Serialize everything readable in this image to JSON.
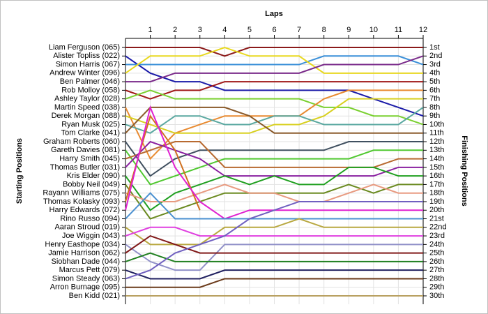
{
  "chart_data": {
    "type": "line",
    "x_label": "Laps",
    "y_label": "Starting Positions",
    "y2_label": "Finishing Positions",
    "categories": [
      null,
      "1",
      "2",
      "3",
      "4",
      "5",
      "6",
      "7",
      "8",
      "9",
      "10",
      "11",
      "12"
    ],
    "ylim": [
      1,
      30
    ],
    "y_inverted": true,
    "grid": true,
    "y2ticks": [
      {
        "value": 1,
        "label": "1st"
      },
      {
        "value": 2,
        "label": "2nd"
      },
      {
        "value": 3,
        "label": "3rd"
      },
      {
        "value": 4,
        "label": "4th"
      },
      {
        "value": 5,
        "label": "5th"
      },
      {
        "value": 6,
        "label": "6th"
      },
      {
        "value": 7,
        "label": "7th"
      },
      {
        "value": 8,
        "label": "8th"
      },
      {
        "value": 9,
        "label": "9th"
      },
      {
        "value": 10,
        "label": "10th"
      },
      {
        "value": 11,
        "label": "11th"
      },
      {
        "value": 12,
        "label": "12th"
      },
      {
        "value": 13,
        "label": "13th"
      },
      {
        "value": 14,
        "label": "14th"
      },
      {
        "value": 15,
        "label": "15th"
      },
      {
        "value": 16,
        "label": "16th"
      },
      {
        "value": 17,
        "label": "17th"
      },
      {
        "value": 18,
        "label": "18th"
      },
      {
        "value": 19,
        "label": "19th"
      },
      {
        "value": 20,
        "label": "20th"
      },
      {
        "value": 21,
        "label": "21st"
      },
      {
        "value": 22,
        "label": "22nd"
      },
      {
        "value": 23,
        "label": "23rd"
      },
      {
        "value": 24,
        "label": "24th"
      },
      {
        "value": 25,
        "label": "25th"
      },
      {
        "value": 26,
        "label": "26th"
      },
      {
        "value": 27,
        "label": "27th"
      },
      {
        "value": 28,
        "label": "28th"
      },
      {
        "value": 29,
        "label": "29th"
      },
      {
        "value": 30,
        "label": "30th"
      }
    ],
    "series": [
      {
        "name": "Liam Ferguson (065)",
        "color": "#8b1a1a",
        "values": [
          1,
          1,
          1,
          1,
          2,
          1,
          1,
          1,
          1,
          1,
          1,
          1,
          1
        ]
      },
      {
        "name": "Alister Topliss (022)",
        "color": "#1a1aa8",
        "values": [
          2,
          4,
          5,
          5,
          6,
          6,
          6,
          6,
          6,
          6,
          7,
          8,
          9
        ]
      },
      {
        "name": "Simon Harris (067)",
        "color": "#3a8fd8",
        "values": [
          3,
          3,
          3,
          3,
          3,
          3,
          3,
          3,
          2,
          2,
          2,
          2,
          3
        ]
      },
      {
        "name": "Andrew Winter (096)",
        "color": "#e8d820",
        "values": [
          4,
          2,
          2,
          2,
          1,
          2,
          2,
          2,
          4,
          4,
          4,
          4,
          4
        ]
      },
      {
        "name": "Ben Palmer (046)",
        "color": "#7a2a8a",
        "values": [
          5,
          5,
          4,
          4,
          4,
          4,
          4,
          4,
          3,
          3,
          3,
          3,
          2
        ]
      },
      {
        "name": "Rob Molloy (058)",
        "color": "#a01818",
        "values": [
          6,
          7,
          6,
          6,
          5,
          5,
          5,
          5,
          5,
          5,
          5,
          5,
          5
        ]
      },
      {
        "name": "Ashley Taylor (028)",
        "color": "#7ad030",
        "values": [
          7,
          6,
          7,
          7,
          7,
          7,
          7,
          7,
          8,
          8,
          9,
          9,
          10
        ]
      },
      {
        "name": "Martin Speed (038)",
        "color": "#e88a30",
        "values": [
          8,
          14,
          11,
          10,
          9,
          9,
          9,
          9,
          7,
          6,
          6,
          6,
          6
        ]
      },
      {
        "name": "Derek Morgan (088)",
        "color": "#d8d020",
        "values": [
          9,
          10,
          11,
          11,
          11,
          11,
          10,
          10,
          9,
          7,
          7,
          7,
          7
        ]
      },
      {
        "name": "Ryan Musk (025)",
        "color": "#5aa8a0",
        "values": [
          10,
          11,
          9,
          9,
          10,
          10,
          9,
          9,
          10,
          10,
          10,
          10,
          8
        ]
      },
      {
        "name": "Tom Clarke (041)",
        "color": "#8a5a2a",
        "values": [
          11,
          8,
          8,
          8,
          8,
          9,
          11,
          11,
          11,
          11,
          11,
          11,
          11
        ]
      },
      {
        "name": "Graham Roberts (060)",
        "color": "#405060",
        "values": [
          12,
          16,
          14,
          13,
          13,
          13,
          13,
          13,
          13,
          12,
          12,
          12,
          12
        ]
      },
      {
        "name": "Gareth Davies (081)",
        "color": "#50c830",
        "values": [
          13,
          17,
          16,
          15,
          14,
          14,
          14,
          14,
          14,
          14,
          13,
          13,
          13
        ]
      },
      {
        "name": "Harry Smith (045)",
        "color": "#b86a30",
        "values": [
          14,
          13,
          12,
          12,
          15,
          15,
          15,
          15,
          15,
          15,
          15,
          14,
          14
        ]
      },
      {
        "name": "Thomas Butler (031)",
        "color": "#8a20a0",
        "values": [
          15,
          12,
          13,
          14,
          16,
          16,
          16,
          16,
          16,
          16,
          16,
          15,
          15
        ]
      },
      {
        "name": "Kris Elder (090)",
        "color": "#20a020",
        "values": [
          16,
          20,
          18,
          17,
          16,
          17,
          16,
          17,
          17,
          15,
          15,
          16,
          16
        ]
      },
      {
        "name": "Bobby Neil (049)",
        "color": "#6a8a20",
        "values": [
          17,
          21,
          20,
          19,
          18,
          18,
          18,
          18,
          18,
          17,
          18,
          17,
          17
        ]
      },
      {
        "name": "Rayann Williams (075)",
        "color": "#e89a80",
        "values": [
          18,
          19,
          19,
          18,
          17,
          18,
          18,
          19,
          19,
          18,
          17,
          18,
          18
        ]
      },
      {
        "name": "Thomas Kolasky (093)",
        "color": "#d07020",
        "values": [
          19,
          9,
          13,
          20,
          null,
          null,
          null,
          null,
          null,
          null,
          null,
          null,
          null
        ]
      },
      {
        "name": "Harry Edwards (072)",
        "color": "#e020d0",
        "values": [
          20,
          8,
          15,
          19,
          21,
          20,
          20,
          20,
          20,
          20,
          20,
          20,
          20
        ]
      },
      {
        "name": "Rino Russo (094)",
        "color": "#4a90d0",
        "values": [
          21,
          18,
          21,
          21,
          21,
          21,
          21,
          21,
          21,
          21,
          21,
          21,
          21
        ]
      },
      {
        "name": "Aaran Stroud (019)",
        "color": "#b8a840",
        "values": [
          22,
          24,
          24,
          24,
          22,
          22,
          22,
          21,
          22,
          22,
          22,
          22,
          22
        ]
      },
      {
        "name": "Joe Wiggin (043)",
        "color": "#e040e0",
        "values": [
          23,
          22,
          22,
          23,
          23,
          23,
          23,
          23,
          23,
          23,
          23,
          23,
          23
        ]
      },
      {
        "name": "Henry Easthope (034)",
        "color": "#9090c8",
        "values": [
          24,
          26,
          27,
          27,
          24,
          24,
          24,
          24,
          24,
          24,
          24,
          24,
          24
        ]
      },
      {
        "name": "Jamie Harrison (062)",
        "color": "#801818",
        "values": [
          25,
          23,
          24,
          25,
          25,
          25,
          25,
          25,
          25,
          25,
          25,
          25,
          25
        ]
      },
      {
        "name": "Siobhan Dade (044)",
        "color": "#208020",
        "values": [
          26,
          25,
          26,
          26,
          26,
          26,
          26,
          26,
          26,
          26,
          26,
          26,
          26
        ]
      },
      {
        "name": "Marcus Pett (079)",
        "color": "#202060",
        "values": [
          27,
          28,
          28,
          28,
          27,
          27,
          27,
          27,
          27,
          27,
          27,
          27,
          27
        ]
      },
      {
        "name": "Simon Steady (063)",
        "color": "#7060c0",
        "values": [
          28,
          27,
          25,
          24,
          23,
          21,
          20,
          19,
          19,
          19,
          19,
          19,
          19
        ]
      },
      {
        "name": "Arron Burnage (095)",
        "color": "#6a3a1a",
        "values": [
          29,
          29,
          29,
          29,
          28,
          28,
          28,
          28,
          28,
          28,
          28,
          28,
          28
        ]
      },
      {
        "name": "Ben Kidd (021)",
        "color": "#b8a060",
        "values": [
          30,
          30,
          30,
          30,
          30,
          30,
          30,
          30,
          30,
          30,
          30,
          30,
          30
        ]
      }
    ]
  }
}
